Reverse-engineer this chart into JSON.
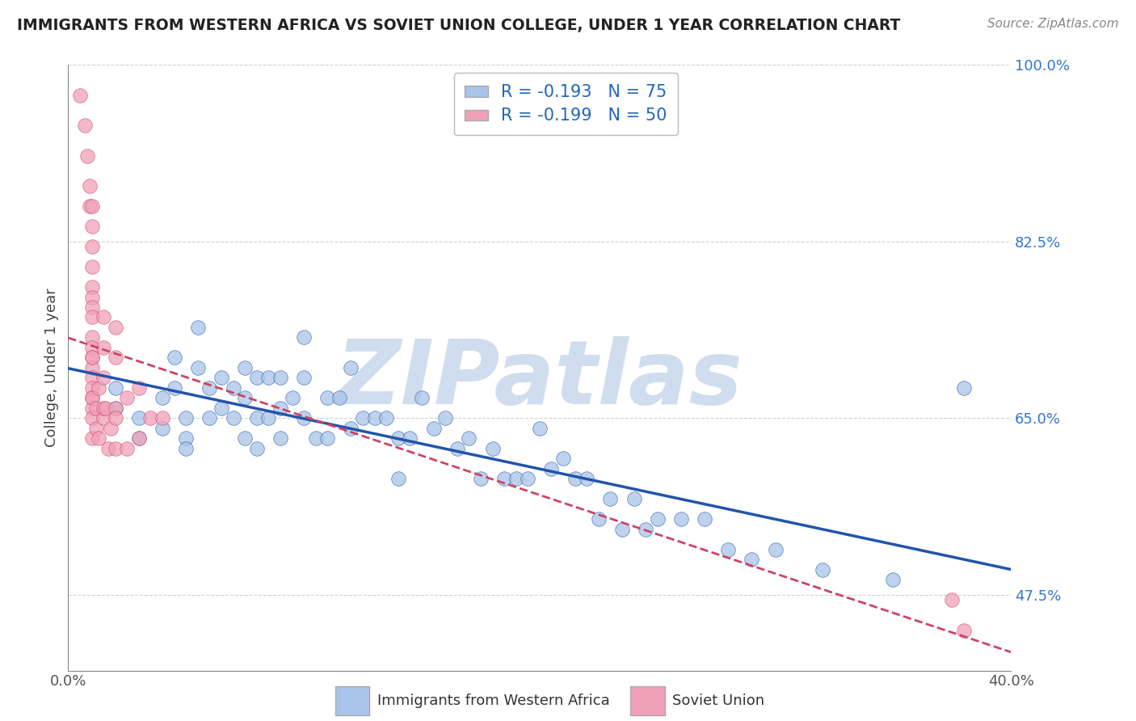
{
  "title": "IMMIGRANTS FROM WESTERN AFRICA VS SOVIET UNION COLLEGE, UNDER 1 YEAR CORRELATION CHART",
  "source": "Source: ZipAtlas.com",
  "ylabel": "College, Under 1 year",
  "xlim": [
    0.0,
    0.4
  ],
  "ylim": [
    0.4,
    1.0
  ],
  "ytick_positions": [
    0.475,
    0.65,
    0.825,
    1.0
  ],
  "ytick_labels": [
    "47.5%",
    "65.0%",
    "82.5%",
    "100.0%"
  ],
  "xtick_positions": [
    0.0,
    0.4
  ],
  "xtick_labels": [
    "0.0%",
    "40.0%"
  ],
  "legend1_label": "R = -0.193   N = 75",
  "legend2_label": "R = -0.199   N = 50",
  "color_blue": "#A8C4E8",
  "color_pink": "#F0A0B8",
  "line_blue": "#2255AA",
  "line_pink": "#CC4466",
  "watermark": "ZIPatlas",
  "watermark_color": "#D0DDEF",
  "background_color": "#FFFFFF",
  "grid_color": "#CCCCCC",
  "western_africa_x": [
    0.02,
    0.02,
    0.03,
    0.03,
    0.04,
    0.04,
    0.045,
    0.045,
    0.05,
    0.05,
    0.05,
    0.055,
    0.055,
    0.06,
    0.06,
    0.065,
    0.065,
    0.07,
    0.07,
    0.075,
    0.075,
    0.075,
    0.08,
    0.08,
    0.08,
    0.085,
    0.085,
    0.09,
    0.09,
    0.09,
    0.095,
    0.1,
    0.1,
    0.1,
    0.105,
    0.11,
    0.11,
    0.115,
    0.12,
    0.12,
    0.125,
    0.13,
    0.135,
    0.14,
    0.14,
    0.145,
    0.15,
    0.155,
    0.16,
    0.165,
    0.17,
    0.175,
    0.18,
    0.185,
    0.19,
    0.195,
    0.2,
    0.205,
    0.21,
    0.215,
    0.22,
    0.225,
    0.23,
    0.235,
    0.24,
    0.245,
    0.25,
    0.26,
    0.27,
    0.28,
    0.29,
    0.3,
    0.32,
    0.35,
    0.38
  ],
  "western_africa_y": [
    0.68,
    0.66,
    0.65,
    0.63,
    0.67,
    0.64,
    0.71,
    0.68,
    0.65,
    0.63,
    0.62,
    0.74,
    0.7,
    0.68,
    0.65,
    0.69,
    0.66,
    0.68,
    0.65,
    0.7,
    0.67,
    0.63,
    0.69,
    0.65,
    0.62,
    0.69,
    0.65,
    0.69,
    0.66,
    0.63,
    0.67,
    0.73,
    0.69,
    0.65,
    0.63,
    0.67,
    0.63,
    0.67,
    0.7,
    0.64,
    0.65,
    0.65,
    0.65,
    0.63,
    0.59,
    0.63,
    0.67,
    0.64,
    0.65,
    0.62,
    0.63,
    0.59,
    0.62,
    0.59,
    0.59,
    0.59,
    0.64,
    0.6,
    0.61,
    0.59,
    0.59,
    0.55,
    0.57,
    0.54,
    0.57,
    0.54,
    0.55,
    0.55,
    0.55,
    0.52,
    0.51,
    0.52,
    0.5,
    0.49,
    0.68
  ],
  "soviet_union_x": [
    0.005,
    0.007,
    0.008,
    0.009,
    0.009,
    0.01,
    0.01,
    0.01,
    0.01,
    0.01,
    0.01,
    0.01,
    0.01,
    0.01,
    0.01,
    0.01,
    0.01,
    0.01,
    0.01,
    0.01,
    0.01,
    0.01,
    0.01,
    0.01,
    0.01,
    0.012,
    0.012,
    0.013,
    0.013,
    0.015,
    0.015,
    0.015,
    0.015,
    0.015,
    0.016,
    0.017,
    0.018,
    0.02,
    0.02,
    0.02,
    0.02,
    0.02,
    0.025,
    0.025,
    0.03,
    0.03,
    0.035,
    0.04,
    0.375,
    0.38
  ],
  "soviet_union_y": [
    0.97,
    0.94,
    0.91,
    0.88,
    0.86,
    0.86,
    0.84,
    0.82,
    0.8,
    0.78,
    0.77,
    0.76,
    0.75,
    0.73,
    0.72,
    0.71,
    0.7,
    0.69,
    0.68,
    0.67,
    0.66,
    0.65,
    0.63,
    0.71,
    0.67,
    0.64,
    0.66,
    0.63,
    0.68,
    0.75,
    0.72,
    0.69,
    0.65,
    0.66,
    0.66,
    0.62,
    0.64,
    0.74,
    0.71,
    0.66,
    0.62,
    0.65,
    0.67,
    0.62,
    0.68,
    0.63,
    0.65,
    0.65,
    0.47,
    0.44
  ]
}
